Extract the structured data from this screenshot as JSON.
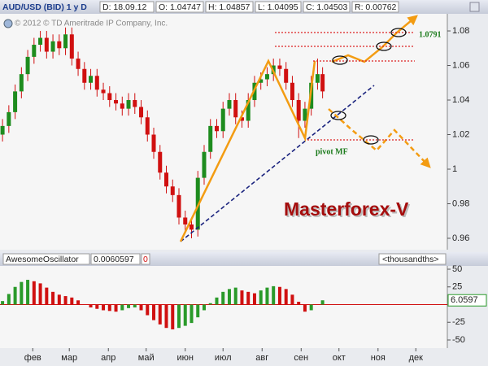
{
  "header": {
    "symbol": "AUD/USD (BID) 1 y D",
    "date": "D: 18.09.12",
    "open": "O: 1.04747",
    "high": "H: 1.04857",
    "low": "L: 1.04095",
    "close": "C: 1.04503",
    "range": "R: 0.00762"
  },
  "copyright": "© 2012 © TD Ameritrade IP Company, Inc.",
  "chart_data": [
    {
      "type": "candlestick",
      "x": [
        8,
        13,
        18,
        23,
        28,
        33,
        38,
        43,
        48,
        53,
        58,
        63,
        68,
        73,
        78,
        83,
        88,
        93,
        98,
        103,
        108,
        113,
        118,
        123,
        128,
        133,
        138,
        143,
        148,
        153,
        158,
        163,
        168,
        173,
        178,
        183,
        188,
        193,
        198,
        203,
        208,
        213,
        218,
        223,
        228,
        233,
        238,
        243,
        248,
        253,
        258,
        262
      ],
      "open": [
        1.02,
        1.025,
        1.033,
        1.045,
        1.055,
        1.065,
        1.072,
        1.076,
        1.068,
        1.074,
        1.07,
        1.078,
        1.064,
        1.058,
        1.05,
        1.054,
        1.046,
        1.044,
        1.04,
        1.038,
        1.035,
        1.04,
        1.036,
        1.03,
        1.02,
        1.01,
        0.998,
        0.99,
        0.985,
        0.972,
        0.968,
        0.965,
        0.995,
        1.01,
        1.025,
        1.022,
        1.035,
        1.04,
        1.03,
        1.028,
        1.04,
        1.05,
        1.052,
        1.055,
        1.06,
        1.058,
        1.05,
        1.04,
        1.028,
        1.035,
        1.05,
        1.055
      ],
      "high": [
        1.029,
        1.037,
        1.049,
        1.059,
        1.069,
        1.076,
        1.08,
        1.08,
        1.078,
        1.078,
        1.082,
        1.082,
        1.068,
        1.062,
        1.058,
        1.058,
        1.05,
        1.048,
        1.044,
        1.042,
        1.044,
        1.044,
        1.04,
        1.034,
        1.024,
        1.014,
        1.002,
        0.994,
        0.989,
        0.976,
        0.972,
        0.999,
        1.014,
        1.029,
        1.029,
        1.039,
        1.044,
        1.044,
        1.034,
        1.044,
        1.054,
        1.056,
        1.059,
        1.064,
        1.064,
        1.062,
        1.054,
        1.044,
        1.039,
        1.054,
        1.064,
        1.059
      ],
      "low": [
        1.016,
        1.021,
        1.029,
        1.041,
        1.051,
        1.061,
        1.068,
        1.064,
        1.064,
        1.066,
        1.066,
        1.06,
        1.054,
        1.046,
        1.046,
        1.042,
        1.04,
        1.036,
        1.034,
        1.031,
        1.031,
        1.032,
        1.026,
        1.016,
        1.006,
        0.994,
        0.986,
        0.981,
        0.968,
        0.964,
        0.96,
        0.961,
        0.991,
        1.006,
        1.018,
        1.018,
        1.031,
        1.026,
        1.024,
        1.024,
        1.036,
        1.046,
        1.048,
        1.051,
        1.054,
        1.046,
        1.036,
        1.018,
        1.024,
        1.031,
        1.046,
        1.041
      ],
      "close": [
        1.025,
        1.033,
        1.045,
        1.055,
        1.065,
        1.072,
        1.076,
        1.068,
        1.074,
        1.07,
        1.078,
        1.064,
        1.058,
        1.05,
        1.054,
        1.046,
        1.044,
        1.04,
        1.038,
        1.035,
        1.04,
        1.036,
        1.03,
        1.02,
        1.01,
        0.998,
        0.99,
        0.985,
        0.972,
        0.968,
        0.965,
        0.995,
        1.01,
        1.025,
        1.022,
        1.035,
        1.04,
        1.03,
        1.028,
        1.04,
        1.05,
        1.052,
        1.055,
        1.06,
        1.058,
        1.05,
        1.04,
        1.028,
        1.035,
        1.05,
        1.055,
        1.045
      ],
      "up_color": "#1e8c1e",
      "down_color": "#d01010",
      "xlim": [
        6,
        361
      ],
      "ylim": [
        0.9534,
        1.0899
      ],
      "yticks": [
        0.96,
        0.98,
        1,
        1.02,
        1.04,
        1.06,
        1.08
      ],
      "level_label": "1.0791",
      "pivot_label": "pivot MF",
      "watermark": "Masterforex-V"
    },
    {
      "type": "bar",
      "title": "AwesomeOscillator",
      "current": "0.0060597",
      "param": "0",
      "units": "<thousandths>",
      "x": [
        8,
        13,
        18,
        23,
        28,
        33,
        38,
        43,
        48,
        53,
        58,
        63,
        68,
        73,
        78,
        83,
        88,
        93,
        98,
        103,
        108,
        113,
        118,
        123,
        128,
        133,
        138,
        143,
        148,
        153,
        158,
        163,
        168,
        173,
        178,
        183,
        188,
        193,
        198,
        203,
        208,
        213,
        218,
        223,
        228,
        233,
        238,
        243,
        248,
        253,
        258,
        262
      ],
      "values": [
        5,
        15,
        25,
        32,
        35,
        33,
        30,
        24,
        18,
        14,
        12,
        10,
        6,
        0,
        -4,
        -6,
        -8,
        -9,
        -10,
        -8,
        -5,
        -4,
        -8,
        -15,
        -22,
        -28,
        -33,
        -35,
        -33,
        -30,
        -26,
        -18,
        -8,
        2,
        10,
        18,
        22,
        24,
        20,
        18,
        16,
        20,
        24,
        26,
        25,
        22,
        14,
        4,
        -10,
        -8,
        0,
        6.0597
      ],
      "up_color": "#2a9a2a",
      "down_color": "#d01010",
      "xlim": [
        6,
        361
      ],
      "ylim": [
        -61.5,
        54.6
      ],
      "yticks": [
        50,
        25,
        -25,
        -50
      ],
      "xticks": [
        {
          "value": 32,
          "label": "фев"
        },
        {
          "value": 61,
          "label": "мар"
        },
        {
          "value": 92,
          "label": "апр"
        },
        {
          "value": 122,
          "label": "май"
        },
        {
          "value": 153,
          "label": "июн"
        },
        {
          "value": 183,
          "label": "июл"
        },
        {
          "value": 214,
          "label": "авг"
        },
        {
          "value": 245,
          "label": "сен"
        },
        {
          "value": 275,
          "label": "окт"
        },
        {
          "value": 306,
          "label": "ноя"
        },
        {
          "value": 336,
          "label": "дек"
        }
      ]
    }
  ]
}
